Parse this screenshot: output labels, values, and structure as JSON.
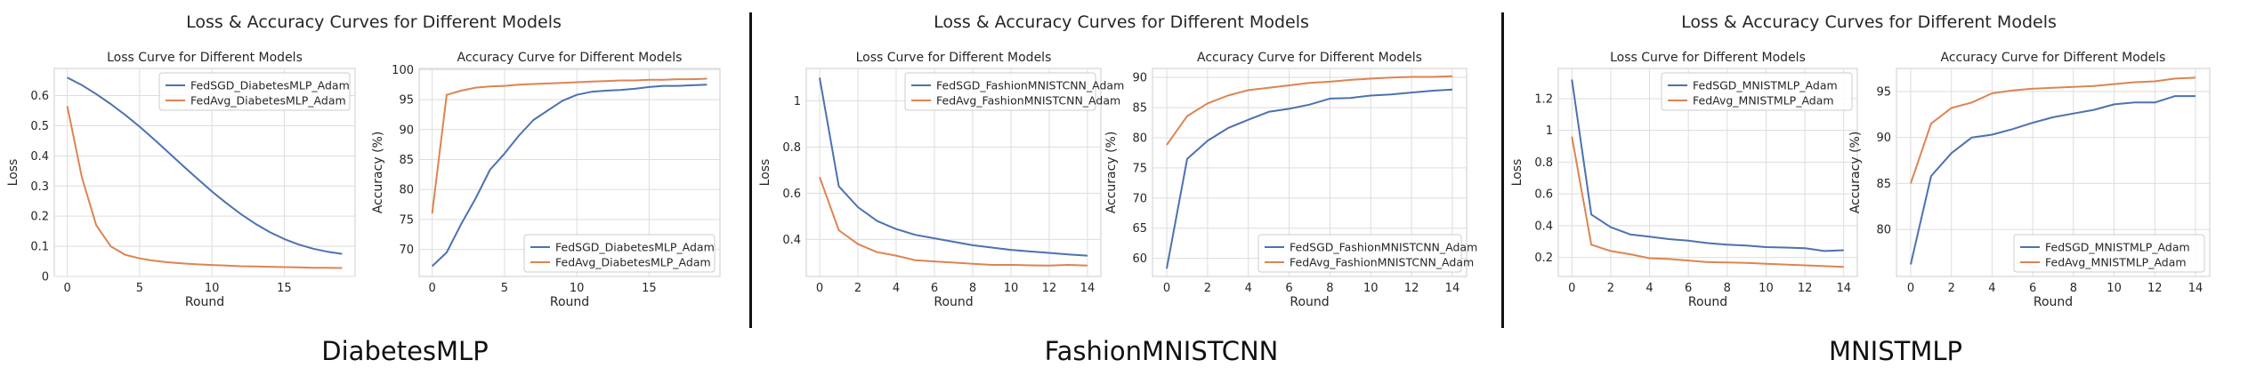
{
  "panels": [
    {
      "title": "Loss & Accuracy Curves for Different Models",
      "caption": "DiabetesMLP"
    },
    {
      "title": "Loss & Accuracy Curves for Different Models",
      "caption": "FashionMNISTCNN"
    },
    {
      "title": "Loss & Accuracy Curves for Different Models",
      "caption": "MNISTMLP"
    }
  ],
  "colors": {
    "fedsgd": "#4c72b0",
    "fedavg": "#dd8452"
  },
  "chart_data": [
    {
      "type": "line",
      "title": "Loss Curve for Different Models",
      "xlabel": "Round",
      "ylabel": "Loss",
      "xlim": [
        -0.9,
        19.9
      ],
      "ylim": [
        0,
        0.69
      ],
      "xticks": [
        0,
        5,
        10,
        15
      ],
      "yticks": [
        0,
        0.1,
        0.2,
        0.3,
        0.4,
        0.5,
        0.6
      ],
      "legend": "top-right",
      "grid": true,
      "x": [
        0,
        1,
        2,
        3,
        4,
        5,
        6,
        7,
        8,
        9,
        10,
        11,
        12,
        13,
        14,
        15,
        16,
        17,
        18,
        19
      ],
      "series": [
        {
          "name": "FedSGD_DiabetesMLP_Adam",
          "values": [
            0.66,
            0.635,
            0.605,
            0.572,
            0.536,
            0.497,
            0.455,
            0.411,
            0.367,
            0.324,
            0.282,
            0.243,
            0.207,
            0.175,
            0.147,
            0.124,
            0.106,
            0.092,
            0.082,
            0.075
          ]
        },
        {
          "name": "FedAvg_DiabetesMLP_Adam",
          "values": [
            0.565,
            0.33,
            0.17,
            0.1,
            0.072,
            0.06,
            0.052,
            0.047,
            0.043,
            0.04,
            0.038,
            0.036,
            0.034,
            0.033,
            0.032,
            0.031,
            0.03,
            0.029,
            0.029,
            0.028
          ]
        }
      ]
    },
    {
      "type": "line",
      "title": "Accuracy Curve for Different Models",
      "xlabel": "Round",
      "ylabel": "Accuracy (%)",
      "xlim": [
        -0.9,
        19.9
      ],
      "ylim": [
        65.5,
        100.2
      ],
      "xticks": [
        0,
        5,
        10,
        15
      ],
      "yticks": [
        70,
        75,
        80,
        85,
        90,
        95,
        100
      ],
      "legend": "bottom-right",
      "grid": true,
      "x": [
        0,
        1,
        2,
        3,
        4,
        5,
        6,
        7,
        8,
        9,
        10,
        11,
        12,
        13,
        14,
        15,
        16,
        17,
        18,
        19
      ],
      "series": [
        {
          "name": "FedSGD_DiabetesMLP_Adam",
          "values": [
            67.2,
            69.5,
            74.2,
            78.5,
            83.3,
            86.0,
            89.0,
            91.6,
            93.2,
            94.8,
            95.8,
            96.3,
            96.5,
            96.6,
            96.8,
            97.1,
            97.3,
            97.3,
            97.4,
            97.5
          ]
        },
        {
          "name": "FedAvg_DiabetesMLP_Adam",
          "values": [
            76.0,
            95.8,
            96.5,
            97.0,
            97.2,
            97.3,
            97.5,
            97.6,
            97.7,
            97.8,
            97.9,
            98.0,
            98.1,
            98.2,
            98.2,
            98.3,
            98.3,
            98.4,
            98.4,
            98.5
          ]
        }
      ]
    },
    {
      "type": "line",
      "title": "Loss Curve for Different Models",
      "xlabel": "Round",
      "ylabel": "Loss",
      "xlim": [
        -0.7,
        14.7
      ],
      "ylim": [
        0.24,
        1.14
      ],
      "xticks": [
        0,
        2,
        4,
        6,
        8,
        10,
        12,
        14
      ],
      "yticks": [
        0.4,
        0.6,
        0.8,
        1.0
      ],
      "legend": "top-right",
      "grid": true,
      "x": [
        0,
        1,
        2,
        3,
        4,
        5,
        6,
        7,
        8,
        9,
        10,
        11,
        12,
        13,
        14
      ],
      "series": [
        {
          "name": "FedSGD_FashionMNISTCNN_Adam",
          "values": [
            1.1,
            0.63,
            0.54,
            0.48,
            0.445,
            0.42,
            0.405,
            0.39,
            0.375,
            0.365,
            0.355,
            0.348,
            0.342,
            0.335,
            0.33
          ]
        },
        {
          "name": "FedAvg_FashionMNISTCNN_Adam",
          "values": [
            0.67,
            0.44,
            0.38,
            0.345,
            0.33,
            0.31,
            0.305,
            0.3,
            0.295,
            0.29,
            0.29,
            0.288,
            0.287,
            0.29,
            0.287
          ]
        }
      ]
    },
    {
      "type": "line",
      "title": "Accuracy Curve for Different Models",
      "xlabel": "Round",
      "ylabel": "Accuracy (%)",
      "xlim": [
        -0.7,
        14.7
      ],
      "ylim": [
        57,
        91.5
      ],
      "xticks": [
        0,
        2,
        4,
        6,
        8,
        10,
        12,
        14
      ],
      "yticks": [
        60,
        65,
        70,
        75,
        80,
        85,
        90
      ],
      "legend": "bottom-right",
      "grid": true,
      "x": [
        0,
        1,
        2,
        3,
        4,
        5,
        6,
        7,
        8,
        9,
        10,
        11,
        12,
        13,
        14
      ],
      "series": [
        {
          "name": "FedSGD_FashionMNISTCNN_Adam",
          "values": [
            58.3,
            76.5,
            79.5,
            81.6,
            83.0,
            84.3,
            84.8,
            85.5,
            86.5,
            86.6,
            87.0,
            87.2,
            87.5,
            87.8,
            88.0
          ]
        },
        {
          "name": "FedAvg_FashionMNISTCNN_Adam",
          "values": [
            78.8,
            83.6,
            85.7,
            87.0,
            87.9,
            88.3,
            88.7,
            89.1,
            89.3,
            89.6,
            89.8,
            90.0,
            90.1,
            90.1,
            90.2
          ]
        }
      ]
    },
    {
      "type": "line",
      "title": "Loss Curve for Different Models",
      "xlabel": "Round",
      "ylabel": "Loss",
      "xlim": [
        -0.7,
        14.7
      ],
      "ylim": [
        0.08,
        1.39
      ],
      "xticks": [
        0,
        2,
        4,
        6,
        8,
        10,
        12,
        14
      ],
      "yticks": [
        0.2,
        0.4,
        0.6,
        0.8,
        1.0,
        1.2
      ],
      "legend": "top-right",
      "grid": true,
      "x": [
        0,
        1,
        2,
        3,
        4,
        5,
        6,
        7,
        8,
        9,
        10,
        11,
        12,
        13,
        14
      ],
      "series": [
        {
          "name": "FedSGD_MNISTMLP_Adam",
          "values": [
            1.32,
            0.47,
            0.39,
            0.345,
            0.33,
            0.315,
            0.305,
            0.29,
            0.28,
            0.275,
            0.265,
            0.262,
            0.258,
            0.24,
            0.245
          ]
        },
        {
          "name": "FedAvg_MNISTMLP_Adam",
          "values": [
            0.96,
            0.28,
            0.24,
            0.22,
            0.195,
            0.19,
            0.18,
            0.17,
            0.168,
            0.165,
            0.16,
            0.155,
            0.15,
            0.145,
            0.14
          ]
        }
      ]
    },
    {
      "type": "line",
      "title": "Accuracy Curve for Different Models",
      "xlabel": "Round",
      "ylabel": "Accuracy (%)",
      "xlim": [
        -0.7,
        14.7
      ],
      "ylim": [
        74.9,
        97.5
      ],
      "xticks": [
        0,
        2,
        4,
        6,
        8,
        10,
        12,
        14
      ],
      "yticks": [
        80,
        85,
        90,
        95
      ],
      "legend": "bottom-right",
      "grid": true,
      "x": [
        0,
        1,
        2,
        3,
        4,
        5,
        6,
        7,
        8,
        9,
        10,
        11,
        12,
        13,
        14
      ],
      "series": [
        {
          "name": "FedSGD_MNISTMLP_Adam",
          "values": [
            76.2,
            85.8,
            88.3,
            90.0,
            90.3,
            90.9,
            91.6,
            92.2,
            92.6,
            93.0,
            93.6,
            93.8,
            93.8,
            94.5,
            94.5
          ]
        },
        {
          "name": "FedAvg_MNISTMLP_Adam",
          "values": [
            85.0,
            91.5,
            93.2,
            93.8,
            94.8,
            95.1,
            95.3,
            95.4,
            95.5,
            95.6,
            95.8,
            96.0,
            96.1,
            96.4,
            96.5
          ]
        }
      ]
    }
  ]
}
